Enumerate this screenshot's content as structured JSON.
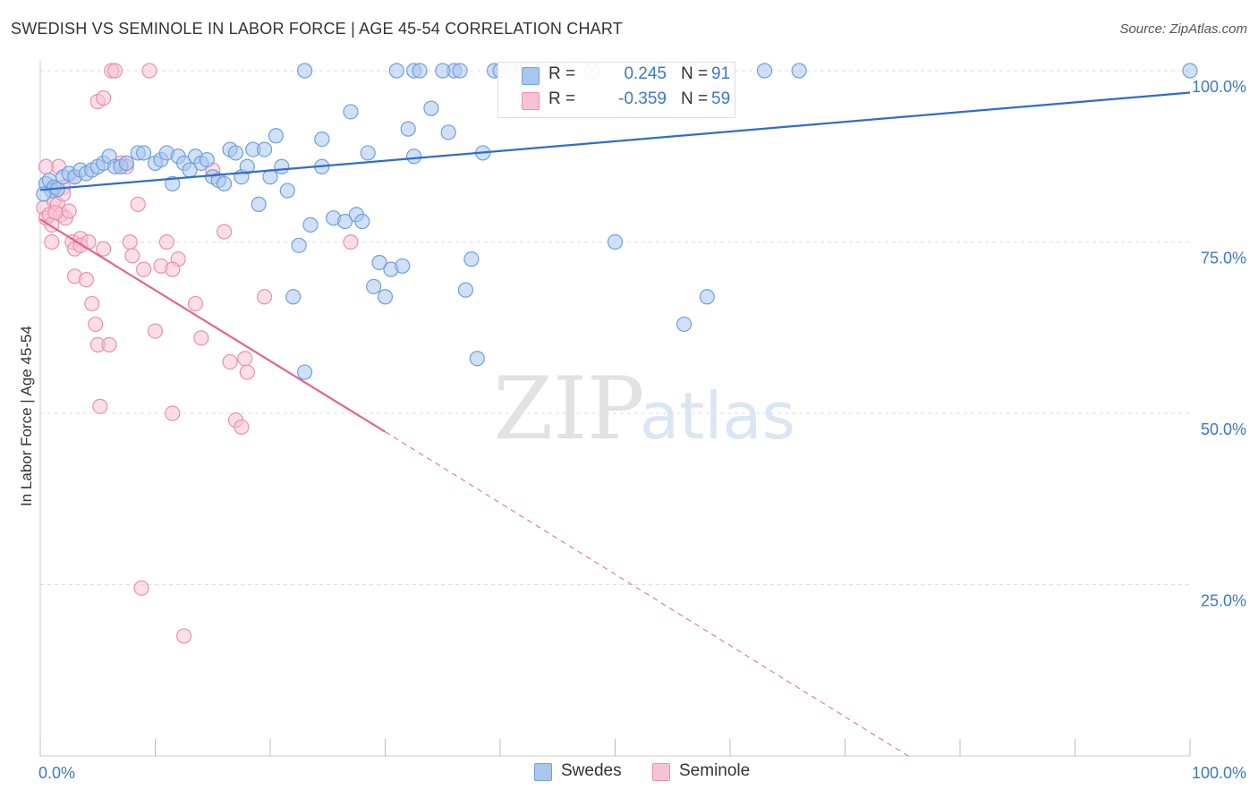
{
  "title": "SWEDISH VS SEMINOLE IN LABOR FORCE | AGE 45-54 CORRELATION CHART",
  "source": "Source: ZipAtlas.com",
  "watermark": {
    "zip": "ZIP",
    "atlas": "atlas"
  },
  "colors": {
    "swedes_fill": "#a9c6ec",
    "swedes_stroke": "#6f9fe0",
    "swedes_line": "#2f6ccf",
    "seminole_fill": "#f7c3d3",
    "seminole_stroke": "#ec90ad",
    "seminole_line": "#e0668f",
    "tick_label": "#3b78c8",
    "grid": "#dddddd"
  },
  "legend": {
    "rows": [
      {
        "r_label": "R =",
        "r_value": "0.245",
        "n_label": "N =",
        "n_value": "91"
      },
      {
        "r_label": "R =",
        "r_value": "-0.359",
        "n_label": "N =",
        "n_value": "59"
      }
    ]
  },
  "bottom_legend": {
    "swedes": "Swedes",
    "seminole": "Seminole"
  },
  "chart_data": {
    "type": "scatter",
    "title": "SWEDISH VS SEMINOLE IN LABOR FORCE | AGE 45-54 CORRELATION CHART",
    "xlabel": "",
    "ylabel": "In Labor Force | Age 45-54",
    "xlim": [
      0,
      100
    ],
    "ylim": [
      0,
      100
    ],
    "x_tick_labels": [
      "0.0%",
      "100.0%"
    ],
    "y_tick_values": [
      25,
      50,
      75,
      100
    ],
    "y_tick_labels": [
      "25.0%",
      "50.0%",
      "75.0%",
      "100.0%"
    ],
    "grid": true,
    "series": [
      {
        "name": "Swedes",
        "r": 0.245,
        "n": 91,
        "trend": {
          "x": [
            0,
            100
          ],
          "y": [
            82.6,
            96.8
          ]
        },
        "points": [
          [
            0.5,
            83.5
          ],
          [
            0.8,
            84.0
          ],
          [
            1.0,
            82.5
          ],
          [
            1.2,
            83.0
          ],
          [
            1.5,
            82.7
          ],
          [
            2.0,
            84.5
          ],
          [
            2.5,
            85.0
          ],
          [
            3.0,
            84.5
          ],
          [
            3.5,
            85.5
          ],
          [
            4.0,
            85.0
          ],
          [
            4.5,
            85.5
          ],
          [
            5.0,
            86.0
          ],
          [
            5.5,
            86.5
          ],
          [
            6.0,
            87.5
          ],
          [
            6.5,
            86.0
          ],
          [
            7.0,
            86.0
          ],
          [
            7.5,
            86.5
          ],
          [
            8.5,
            88.0
          ],
          [
            9.0,
            88.0
          ],
          [
            10.0,
            86.5
          ],
          [
            10.5,
            87.0
          ],
          [
            11.0,
            88.0
          ],
          [
            11.5,
            83.5
          ],
          [
            12.0,
            87.5
          ],
          [
            12.5,
            86.5
          ],
          [
            13.0,
            85.5
          ],
          [
            13.5,
            87.5
          ],
          [
            14.0,
            86.5
          ],
          [
            14.5,
            87.0
          ],
          [
            15.0,
            84.5
          ],
          [
            15.5,
            84.0
          ],
          [
            16.0,
            83.5
          ],
          [
            16.5,
            88.5
          ],
          [
            17.0,
            88.0
          ],
          [
            17.5,
            84.5
          ],
          [
            18.0,
            86.0
          ],
          [
            18.5,
            88.5
          ],
          [
            19.0,
            80.5
          ],
          [
            19.5,
            88.5
          ],
          [
            20.0,
            84.5
          ],
          [
            20.5,
            90.5
          ],
          [
            21.0,
            86.0
          ],
          [
            21.5,
            82.5
          ],
          [
            22.5,
            74.5
          ],
          [
            22.0,
            67.0
          ],
          [
            23.0,
            56.0
          ],
          [
            23.5,
            77.5
          ],
          [
            24.5,
            86.0
          ],
          [
            24.5,
            90.0
          ],
          [
            25.5,
            78.5
          ],
          [
            26.5,
            78.0
          ],
          [
            27.0,
            94.0
          ],
          [
            27.5,
            79.0
          ],
          [
            28.0,
            78.0
          ],
          [
            28.5,
            88.0
          ],
          [
            29.0,
            68.5
          ],
          [
            29.5,
            72.0
          ],
          [
            30.0,
            67.0
          ],
          [
            30.5,
            71.0
          ],
          [
            31.0,
            100.0
          ],
          [
            31.5,
            71.5
          ],
          [
            32.0,
            91.5
          ],
          [
            32.5,
            87.5
          ],
          [
            32.5,
            100.0
          ],
          [
            33.0,
            100.0
          ],
          [
            34.0,
            94.5
          ],
          [
            35.5,
            91.0
          ],
          [
            36.0,
            100.0
          ],
          [
            36.5,
            100.0
          ],
          [
            37.0,
            68.0
          ],
          [
            37.5,
            72.5
          ],
          [
            38.0,
            58.0
          ],
          [
            38.5,
            88.0
          ],
          [
            39.5,
            100.0
          ],
          [
            40.0,
            100.0
          ],
          [
            41.0,
            100.0
          ],
          [
            42.0,
            100.0
          ],
          [
            43.0,
            100.0
          ],
          [
            45.0,
            100.0
          ],
          [
            48.0,
            100.0
          ],
          [
            50.0,
            75.0
          ],
          [
            54.0,
            100.0
          ],
          [
            56.5,
            100.0
          ],
          [
            56.0,
            63.0
          ],
          [
            58.0,
            67.0
          ],
          [
            63.0,
            100.0
          ],
          [
            66.0,
            100.0
          ],
          [
            23.0,
            100.0
          ],
          [
            35.0,
            100.0
          ],
          [
            0.3,
            82.0
          ],
          [
            100.0,
            100.0
          ]
        ]
      },
      {
        "name": "Seminole",
        "r": -0.359,
        "n": 59,
        "trend": {
          "x": [
            0,
            30
          ],
          "y": [
            78.3,
            47.3
          ]
        },
        "trend_dashed": {
          "x": [
            30,
            75.5
          ],
          "y": [
            47.3,
            0
          ]
        },
        "points": [
          [
            0.3,
            80.0
          ],
          [
            0.5,
            78.5
          ],
          [
            0.8,
            79.0
          ],
          [
            1.0,
            77.5
          ],
          [
            1.2,
            81.0
          ],
          [
            1.5,
            80.5
          ],
          [
            1.6,
            86.0
          ],
          [
            1.8,
            79.0
          ],
          [
            2.0,
            83.0
          ],
          [
            2.2,
            78.5
          ],
          [
            2.5,
            79.5
          ],
          [
            2.8,
            75.0
          ],
          [
            3.0,
            74.0
          ],
          [
            3.0,
            70.0
          ],
          [
            3.5,
            75.5
          ],
          [
            3.5,
            74.5
          ],
          [
            4.0,
            69.5
          ],
          [
            4.2,
            75.0
          ],
          [
            4.5,
            66.0
          ],
          [
            4.8,
            63.0
          ],
          [
            5.0,
            60.0
          ],
          [
            5.2,
            51.0
          ],
          [
            5.5,
            74.0
          ],
          [
            6.0,
            60.0
          ],
          [
            6.2,
            100.0
          ],
          [
            6.5,
            100.0
          ],
          [
            5.0,
            95.5
          ],
          [
            5.5,
            96.0
          ],
          [
            7.0,
            86.5
          ],
          [
            7.5,
            86.0
          ],
          [
            7.8,
            75.0
          ],
          [
            8.0,
            73.0
          ],
          [
            8.5,
            80.5
          ],
          [
            8.8,
            24.5
          ],
          [
            9.0,
            71.0
          ],
          [
            9.5,
            100.0
          ],
          [
            10.0,
            62.0
          ],
          [
            10.5,
            71.5
          ],
          [
            11.0,
            75.0
          ],
          [
            11.5,
            50.0
          ],
          [
            12.5,
            17.5
          ],
          [
            12.0,
            72.5
          ],
          [
            13.5,
            66.0
          ],
          [
            14.0,
            61.0
          ],
          [
            15.0,
            85.5
          ],
          [
            16.0,
            76.5
          ],
          [
            16.5,
            57.5
          ],
          [
            17.0,
            49.0
          ],
          [
            17.5,
            48.0
          ],
          [
            18.0,
            56.0
          ],
          [
            19.5,
            67.0
          ],
          [
            27.0,
            75.0
          ],
          [
            1.0,
            75.0
          ],
          [
            0.5,
            86.0
          ],
          [
            2.0,
            82.0
          ],
          [
            3.0,
            84.5
          ],
          [
            1.3,
            79.3
          ],
          [
            11.5,
            71.0
          ],
          [
            17.8,
            58.0
          ]
        ]
      }
    ]
  }
}
